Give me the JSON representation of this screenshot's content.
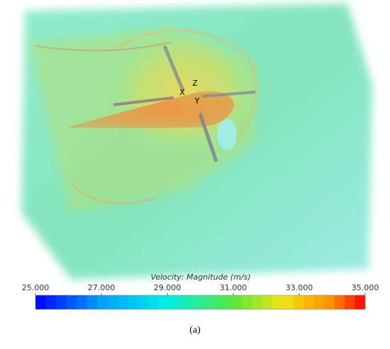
{
  "figure": {
    "axis_labels": [
      "X",
      "Y",
      "Z"
    ],
    "colorbar": {
      "title": "Velocity: Magnitude (m/s)",
      "lim": [
        25,
        35
      ],
      "ticks": [
        {
          "value": 25,
          "label": "25.000"
        },
        {
          "value": 27,
          "label": "27.000"
        },
        {
          "value": 29,
          "label": "29.000"
        },
        {
          "value": 31,
          "label": "31.000"
        },
        {
          "value": 33,
          "label": "33.000"
        },
        {
          "value": 35,
          "label": "35.000"
        }
      ]
    },
    "caption": "(a)"
  }
}
